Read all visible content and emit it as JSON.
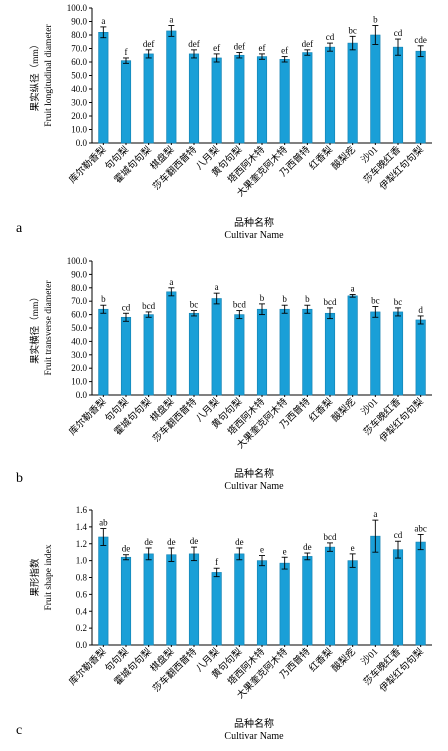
{
  "chart_data": [
    {
      "type": "bar",
      "panel_label": "a",
      "ylabel_cn": "果实纵径（mm）",
      "ylabel_en": "Fruit longitudinal diameter",
      "xlabel_cn": "品种名称",
      "xlabel_en": "Cultivar Name",
      "ylim": [
        0,
        100
      ],
      "yticks": [
        "0.0",
        "10.0",
        "20.0",
        "30.0",
        "40.0",
        "50.0",
        "60.0",
        "70.0",
        "80.0",
        "90.0",
        "100.0"
      ],
      "categories": [
        "库尔勒香梨",
        "句句梨",
        "霍城句句梨",
        "棋盘梨",
        "莎车翻西普特",
        "八月梨",
        "黄句句梨",
        "塔西阿木特",
        "大果奎克阿木特",
        "乃西普特",
        "红香梨",
        "酸梨疙",
        "沙01",
        "莎车晚红香",
        "伊犁红句句梨"
      ],
      "values": [
        82,
        61,
        66,
        83,
        66,
        63,
        65,
        64,
        62,
        67,
        71,
        74,
        80,
        71,
        68
      ],
      "errors": [
        4,
        2,
        3,
        4,
        3,
        3,
        2,
        2,
        2,
        2,
        3,
        5,
        7,
        6,
        4
      ],
      "labels": [
        "a",
        "f",
        "def",
        "a",
        "def",
        "ef",
        "def",
        "ef",
        "ef",
        "def",
        "cd",
        "bc",
        "b",
        "cd",
        "cde"
      ]
    },
    {
      "type": "bar",
      "panel_label": "b",
      "ylabel_cn": "果实横径（mm）",
      "ylabel_en": "Fruit transverse diameter",
      "xlabel_cn": "品种名称",
      "xlabel_en": "Cultivar Name",
      "ylim": [
        0,
        100
      ],
      "yticks": [
        "0.0",
        "10.0",
        "20.0",
        "30.0",
        "40.0",
        "50.0",
        "60.0",
        "70.0",
        "80.0",
        "90.0",
        "100.0"
      ],
      "categories": [
        "库尔勒香梨",
        "句句梨",
        "霍城句句梨",
        "棋盘梨",
        "莎车翻西普特",
        "八月梨",
        "黄句句梨",
        "塔西阿木特",
        "大果奎克阿木特",
        "乃西普特",
        "红香梨",
        "酸梨疙",
        "沙01",
        "莎车晚红香",
        "伊犁红句句梨"
      ],
      "values": [
        64,
        58,
        60,
        77,
        61,
        72,
        60,
        64,
        64,
        64,
        61,
        74,
        62,
        62,
        56
      ],
      "errors": [
        3,
        3,
        2,
        3,
        2,
        4,
        3,
        4,
        3,
        3,
        4,
        1,
        4,
        3,
        3
      ],
      "labels": [
        "b",
        "cd",
        "bcd",
        "a",
        "bc",
        "a",
        "bcd",
        "b",
        "b",
        "b",
        "bcd",
        "a",
        "bc",
        "bc",
        "d"
      ]
    },
    {
      "type": "bar",
      "panel_label": "c",
      "ylabel_cn": "果形指数",
      "ylabel_en": "Fruit shape index",
      "xlabel_cn": "品种名称",
      "xlabel_en": "Cultivar Name",
      "ylim": [
        0,
        1.6
      ],
      "yticks": [
        "0.0",
        "0.2",
        "0.4",
        "0.6",
        "0.8",
        "1.0",
        "1.2",
        "1.4",
        "1.6"
      ],
      "categories": [
        "库尔勒香梨",
        "句句梨",
        "霍城句句梨",
        "棋盘梨",
        "莎车翻西普特",
        "八月梨",
        "黄句句梨",
        "塔西阿木特",
        "大果奎克阿木特",
        "乃西普特",
        "红香梨",
        "酸梨疙",
        "沙01",
        "莎车晚红香",
        "伊犁红句句梨"
      ],
      "values": [
        1.28,
        1.04,
        1.08,
        1.07,
        1.08,
        0.86,
        1.08,
        1.0,
        0.97,
        1.05,
        1.16,
        1.0,
        1.29,
        1.13,
        1.22
      ],
      "errors": [
        0.1,
        0.03,
        0.07,
        0.08,
        0.08,
        0.05,
        0.07,
        0.06,
        0.07,
        0.04,
        0.05,
        0.08,
        0.19,
        0.1,
        0.09
      ],
      "labels": [
        "ab",
        "de",
        "de",
        "de",
        "de",
        "f",
        "de",
        "e",
        "e",
        "de",
        "bcd",
        "e",
        "a",
        "cd",
        "abc"
      ]
    }
  ],
  "colors": {
    "bar_fill": "#1a9fd7",
    "bar_stroke": "#1480b0",
    "axis": "#000000"
  }
}
